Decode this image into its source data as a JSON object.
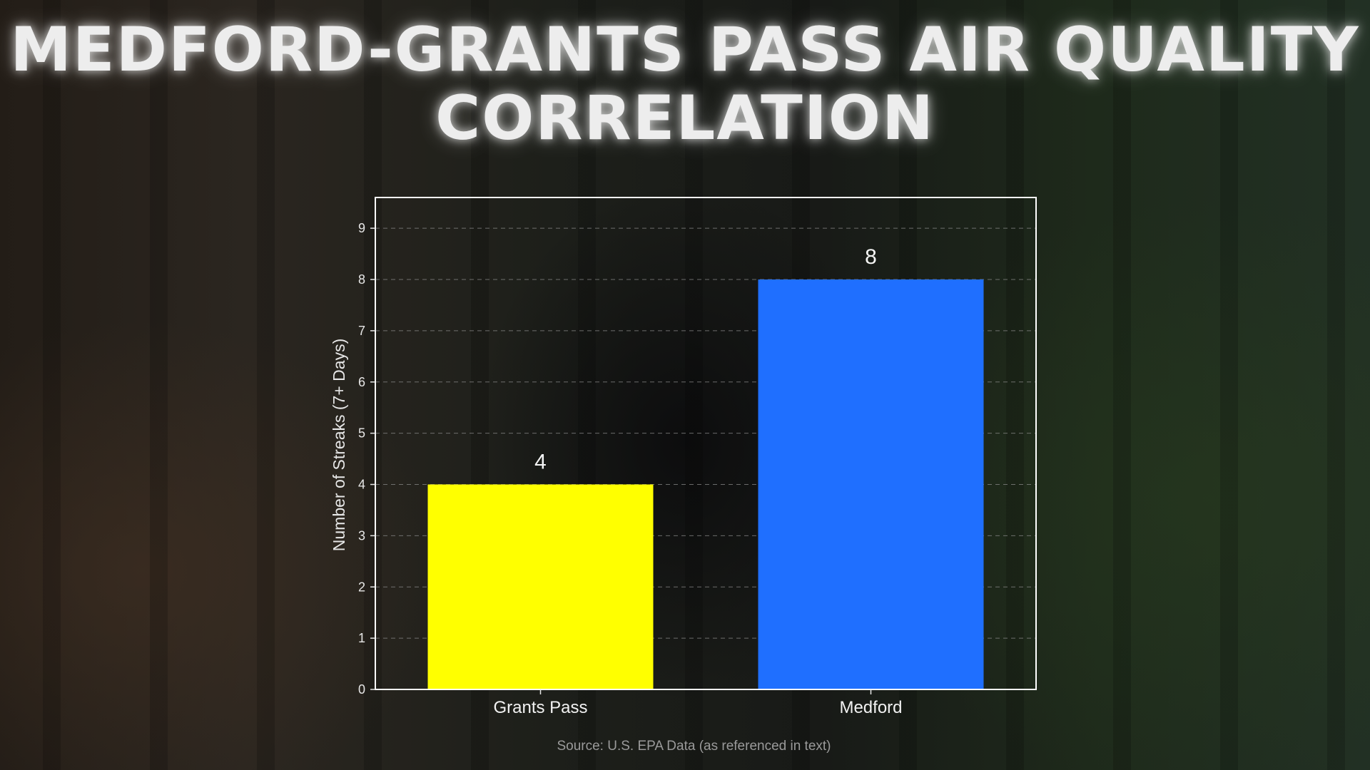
{
  "title": "MEDFORD-GRANTS PASS AIR QUALITY CORRELATION",
  "source": "Source: U.S. EPA Data (as referenced in text)",
  "colors": {
    "grants_pass": "#ffff00",
    "medford": "#1f6fff",
    "grid": "#8a8a8a",
    "frame": "#ffffff"
  },
  "chart_data": {
    "type": "bar",
    "categories": [
      "Grants Pass",
      "Medford"
    ],
    "values": [
      4,
      8
    ],
    "data_labels": [
      "4",
      "8"
    ],
    "bar_colors": [
      "#ffff00",
      "#1f6fff"
    ],
    "title": "MEDFORD-GRANTS PASS AIR QUALITY CORRELATION",
    "xlabel": "",
    "ylabel": "Number of Streaks (7+ Days)",
    "ylim": [
      0,
      9.6
    ],
    "yticks": [
      0,
      1,
      2,
      3,
      4,
      5,
      6,
      7,
      8,
      9
    ],
    "grid": true,
    "grid_style": "dashed",
    "legend": "none"
  }
}
